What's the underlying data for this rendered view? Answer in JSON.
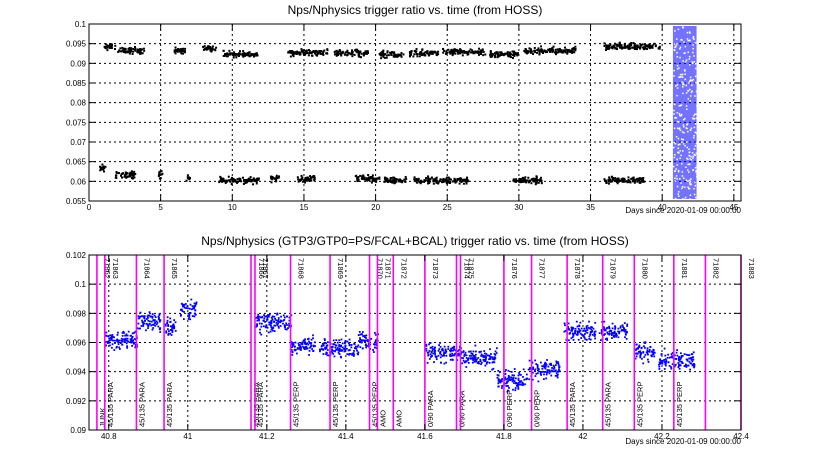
{
  "chart_data": [
    {
      "type": "scatter",
      "title": "Nps/Nphysics trigger ratio vs. time (from HOSS)",
      "xlabel": "Days since 2020-01-09 00:00:00",
      "ylabel": "",
      "xlim": [
        0,
        45.5
      ],
      "ylim": [
        0.055,
        0.1
      ],
      "xticks": [
        0,
        5,
        10,
        15,
        20,
        25,
        30,
        35,
        40,
        45
      ],
      "yticks": [
        0.055,
        0.06,
        0.065,
        0.07,
        0.075,
        0.08,
        0.085,
        0.09,
        0.095,
        0.1
      ],
      "ytick_labels": [
        "0.055",
        "0.06",
        "0.065",
        "0.07",
        "0.075",
        "0.08",
        "0.085",
        "0.09",
        "0.095",
        "0.1"
      ],
      "grid": true,
      "series": [
        {
          "color": "#000000",
          "segments": [
            {
              "x0": 1.0,
              "x1": 1.8,
              "y": 0.0945
            },
            {
              "x0": 1.9,
              "x1": 3.8,
              "y": 0.0935
            },
            {
              "x0": 5.9,
              "x1": 6.8,
              "y": 0.0935
            },
            {
              "x0": 7.9,
              "x1": 8.8,
              "y": 0.094
            },
            {
              "x0": 9.3,
              "x1": 11.7,
              "y": 0.0925
            },
            {
              "x0": 13.8,
              "x1": 16.6,
              "y": 0.093
            },
            {
              "x0": 17.0,
              "x1": 19.4,
              "y": 0.0928
            },
            {
              "x0": 20.2,
              "x1": 21.9,
              "y": 0.0925
            },
            {
              "x0": 22.3,
              "x1": 24.3,
              "y": 0.0928
            },
            {
              "x0": 24.6,
              "x1": 27.6,
              "y": 0.0932
            },
            {
              "x0": 27.9,
              "x1": 29.9,
              "y": 0.0925
            },
            {
              "x0": 30.3,
              "x1": 33.9,
              "y": 0.0935
            },
            {
              "x0": 35.9,
              "x1": 39.8,
              "y": 0.0945
            },
            {
              "x0": 0.7,
              "x1": 1.1,
              "y": 0.0635
            },
            {
              "x0": 1.8,
              "x1": 3.2,
              "y": 0.0618
            },
            {
              "x0": 4.8,
              "x1": 5.1,
              "y": 0.0618
            },
            {
              "x0": 6.7,
              "x1": 7.0,
              "y": 0.0612
            },
            {
              "x0": 9.0,
              "x1": 11.8,
              "y": 0.0605
            },
            {
              "x0": 12.6,
              "x1": 13.2,
              "y": 0.061
            },
            {
              "x0": 14.5,
              "x1": 15.8,
              "y": 0.0608
            },
            {
              "x0": 18.5,
              "x1": 20.2,
              "y": 0.061
            },
            {
              "x0": 20.5,
              "x1": 22.1,
              "y": 0.0605
            },
            {
              "x0": 22.6,
              "x1": 26.4,
              "y": 0.0605
            },
            {
              "x0": 29.5,
              "x1": 31.6,
              "y": 0.0605
            },
            {
              "x0": 35.9,
              "x1": 38.7,
              "y": 0.0605
            }
          ]
        },
        {
          "color": "#0000ff",
          "segments": [
            {
              "x0": 40.75,
              "x1": 42.4,
              "y": 0.0775
            }
          ]
        }
      ]
    },
    {
      "type": "scatter",
      "title": "Nps/Nphysics (GTP3/GTP0=PS/FCAL+BCAL) trigger ratio vs. time (from HOSS)",
      "xlabel": "Days since 2020-01-09 00:00:00",
      "ylabel": "",
      "xlim": [
        40.75,
        42.4
      ],
      "ylim": [
        0.09,
        0.102
      ],
      "xticks": [
        40.8,
        41,
        41.2,
        41.4,
        41.6,
        41.8,
        42,
        42.2,
        42.4
      ],
      "yticks": [
        0.09,
        0.092,
        0.094,
        0.096,
        0.098,
        0.1,
        0.102
      ],
      "ytick_labels": [
        "0.09",
        "0.092",
        "0.094",
        "0.096",
        "0.098",
        "0.1",
        "0.102"
      ],
      "grid": true,
      "series": [
        {
          "color": "#0000ff",
          "segments": [
            {
              "x0": 40.79,
              "x1": 40.87,
              "y": 0.0962
            },
            {
              "x0": 40.87,
              "x1": 40.93,
              "y": 0.0975
            },
            {
              "x0": 40.94,
              "x1": 40.97,
              "y": 0.0972
            },
            {
              "x0": 40.98,
              "x1": 41.02,
              "y": 0.0983
            },
            {
              "x0": 41.17,
              "x1": 41.26,
              "y": 0.0974
            },
            {
              "x0": 41.26,
              "x1": 41.32,
              "y": 0.0958
            },
            {
              "x0": 41.33,
              "x1": 41.43,
              "y": 0.0957
            },
            {
              "x0": 41.43,
              "x1": 41.48,
              "y": 0.0962
            },
            {
              "x0": 41.6,
              "x1": 41.69,
              "y": 0.0953
            },
            {
              "x0": 41.69,
              "x1": 41.78,
              "y": 0.095
            },
            {
              "x0": 41.78,
              "x1": 41.86,
              "y": 0.0934
            },
            {
              "x0": 41.86,
              "x1": 41.94,
              "y": 0.0942
            },
            {
              "x0": 41.95,
              "x1": 42.03,
              "y": 0.0968
            },
            {
              "x0": 42.04,
              "x1": 42.11,
              "y": 0.0968
            },
            {
              "x0": 42.13,
              "x1": 42.18,
              "y": 0.0954
            },
            {
              "x0": 42.19,
              "x1": 42.28,
              "y": 0.0948
            }
          ]
        }
      ],
      "runs": [
        {
          "x": 40.77,
          "run": "71862",
          "setting": "JUNK"
        },
        {
          "x": 40.79,
          "run": "71863",
          "setting": "45/135 PARA"
        },
        {
          "x": 40.87,
          "run": "71864",
          "setting": "45/135 PARA"
        },
        {
          "x": 40.94,
          "run": "71865",
          "setting": "45/135 PARA"
        },
        {
          "x": 41.16,
          "run": "71866",
          "setting": "45/135 PARA"
        },
        {
          "x": 41.17,
          "run": "71867",
          "setting": "45/135 PARA"
        },
        {
          "x": 41.26,
          "run": "71868",
          "setting": "45/135 PERP"
        },
        {
          "x": 41.36,
          "run": "71869",
          "setting": "45/135 PERP"
        },
        {
          "x": 41.46,
          "run": "71870",
          "setting": "45/135 PERP"
        },
        {
          "x": 41.48,
          "run": "71871",
          "setting": "AMO"
        },
        {
          "x": 41.52,
          "run": "71872",
          "setting": "AMO"
        },
        {
          "x": 41.6,
          "run": "71873",
          "setting": "0/90 PARA"
        },
        {
          "x": 41.68,
          "run": "71874",
          "setting": "0/90 PARA"
        },
        {
          "x": 41.69,
          "run": "71875",
          "setting": ""
        },
        {
          "x": 41.8,
          "run": "71876",
          "setting": "0/90 PERP"
        },
        {
          "x": 41.87,
          "run": "71877",
          "setting": "0/90 PERP"
        },
        {
          "x": 41.96,
          "run": "71878",
          "setting": "45/135 PARA"
        },
        {
          "x": 42.05,
          "run": "71879",
          "setting": "45/135 PARA"
        },
        {
          "x": 42.13,
          "run": "71880",
          "setting": "45/135 PERP"
        },
        {
          "x": 42.23,
          "run": "71881",
          "setting": "45/135 PERP"
        },
        {
          "x": 42.31,
          "run": "71882",
          "setting": ""
        },
        {
          "x": 42.4,
          "run": "71883",
          "setting": ""
        }
      ],
      "run_line_color": "#ff00ff"
    }
  ]
}
